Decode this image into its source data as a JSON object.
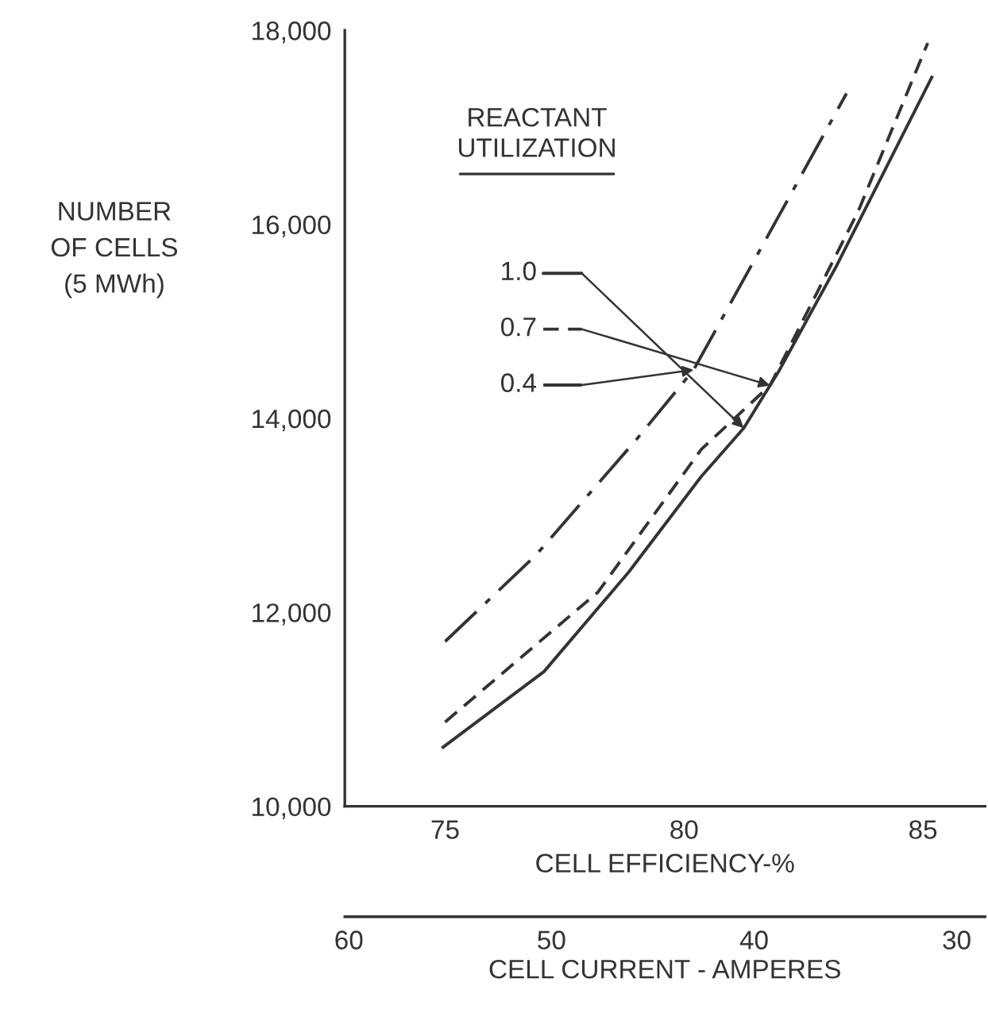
{
  "chart_data": {
    "type": "line",
    "ylabel": "NUMBER\nOF CELLS\n(5 MWh)",
    "xlabel": "CELL EFFICIENCY-%",
    "x2label": "CELL CURRENT - AMPERES",
    "legend_title": "REACTANT\nUTILIZATION",
    "series": [
      {
        "name": "1.0",
        "color": "#333333",
        "line_style": "solid",
        "x": [
          74.93,
          77.07,
          78.85,
          80.36,
          81.25,
          82.0,
          83.2,
          85.2
        ],
        "values": [
          10600,
          11390,
          12420,
          13400,
          13900,
          14500,
          15580,
          17530
        ]
      },
      {
        "name": "0.7",
        "color": "#333333",
        "line_style": "dashed",
        "x": [
          75.0,
          78.2,
          80.36,
          81.8,
          83.65,
          85.1
        ],
        "values": [
          10870,
          12210,
          13680,
          14340,
          16140,
          17870
        ]
      },
      {
        "name": "0.4",
        "color": "#333333",
        "line_style": "dashdot",
        "x": [
          75.0,
          76.9,
          79.0,
          80.2,
          82.1,
          83.4
        ],
        "values": [
          11700,
          12590,
          13780,
          14500,
          16190,
          17350
        ]
      }
    ],
    "xlim": [
      72.9,
      86.3
    ],
    "xticks": [
      75,
      80,
      85
    ],
    "x2lim": [
      60.2,
      28.6
    ],
    "x2ticks": [
      60,
      50,
      40,
      30
    ],
    "ylim": [
      10000,
      18000
    ],
    "yticks": [
      {
        "value": 10000,
        "label": "10,000"
      },
      {
        "value": 12000,
        "label": "12,000"
      },
      {
        "value": 14000,
        "label": "14,000"
      },
      {
        "value": 16000,
        "label": "16,000"
      },
      {
        "value": 18000,
        "label": "18,000"
      }
    ],
    "grid": false,
    "legend": "top left",
    "marker": "none"
  }
}
